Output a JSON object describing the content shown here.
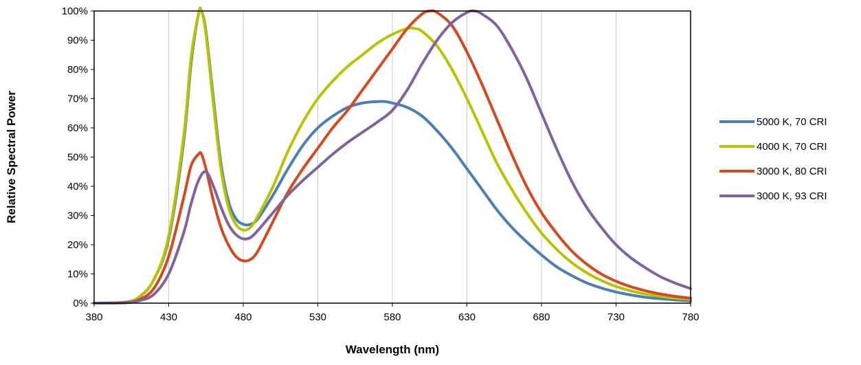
{
  "chart_data": {
    "type": "line",
    "title": "",
    "xlabel": "Wavelength (nm)",
    "ylabel": "Relative Spectral Power",
    "xlim": [
      380,
      780
    ],
    "ylim": [
      0,
      100
    ],
    "x_ticks": [
      380,
      430,
      480,
      530,
      580,
      630,
      680,
      730,
      780
    ],
    "x_tick_labels": [
      "380",
      "430",
      "480",
      "530",
      "580",
      "630",
      "680",
      "730",
      "780"
    ],
    "y_ticks": [
      0,
      10,
      20,
      30,
      40,
      50,
      60,
      70,
      80,
      90,
      100
    ],
    "y_tick_labels": [
      "0%",
      "10%",
      "20%",
      "30%",
      "40%",
      "50%",
      "60%",
      "70%",
      "80%",
      "90%",
      "100%"
    ],
    "grid": "vertical",
    "legend_position": "right",
    "series": [
      {
        "name": "5000 K, 70 CRI",
        "color": "#4a7ebb",
        "points": [
          [
            380,
            0
          ],
          [
            400,
            0.3
          ],
          [
            410,
            2
          ],
          [
            420,
            8
          ],
          [
            430,
            22
          ],
          [
            440,
            55
          ],
          [
            445,
            82
          ],
          [
            450,
            99
          ],
          [
            452,
            100
          ],
          [
            455,
            93
          ],
          [
            460,
            70
          ],
          [
            465,
            48
          ],
          [
            470,
            35
          ],
          [
            475,
            29
          ],
          [
            480,
            27
          ],
          [
            485,
            27
          ],
          [
            490,
            29
          ],
          [
            500,
            37
          ],
          [
            510,
            46
          ],
          [
            520,
            54
          ],
          [
            530,
            60
          ],
          [
            540,
            64
          ],
          [
            550,
            67
          ],
          [
            560,
            68.5
          ],
          [
            570,
            69
          ],
          [
            575,
            69
          ],
          [
            580,
            68.5
          ],
          [
            590,
            67
          ],
          [
            600,
            64
          ],
          [
            610,
            59
          ],
          [
            620,
            53
          ],
          [
            630,
            46
          ],
          [
            640,
            39
          ],
          [
            650,
            32
          ],
          [
            660,
            26
          ],
          [
            670,
            21
          ],
          [
            680,
            16.5
          ],
          [
            690,
            12.5
          ],
          [
            700,
            9.5
          ],
          [
            710,
            7
          ],
          [
            720,
            5.2
          ],
          [
            730,
            3.8
          ],
          [
            740,
            2.8
          ],
          [
            750,
            2
          ],
          [
            760,
            1.5
          ],
          [
            770,
            1.1
          ],
          [
            780,
            0.8
          ]
        ]
      },
      {
        "name": "4000 K, 70 CRI",
        "color": "#b9c400",
        "points": [
          [
            380,
            0
          ],
          [
            400,
            0.3
          ],
          [
            410,
            2
          ],
          [
            420,
            8
          ],
          [
            430,
            23
          ],
          [
            440,
            57
          ],
          [
            445,
            84
          ],
          [
            450,
            99
          ],
          [
            452,
            100
          ],
          [
            455,
            92
          ],
          [
            460,
            68
          ],
          [
            465,
            46
          ],
          [
            470,
            33
          ],
          [
            475,
            27
          ],
          [
            480,
            25
          ],
          [
            485,
            26
          ],
          [
            490,
            30
          ],
          [
            500,
            40
          ],
          [
            510,
            52
          ],
          [
            520,
            62
          ],
          [
            530,
            70
          ],
          [
            540,
            76
          ],
          [
            550,
            81
          ],
          [
            560,
            85
          ],
          [
            570,
            89
          ],
          [
            580,
            92
          ],
          [
            590,
            94
          ],
          [
            595,
            94
          ],
          [
            600,
            93
          ],
          [
            610,
            88
          ],
          [
            620,
            80
          ],
          [
            630,
            70
          ],
          [
            640,
            59
          ],
          [
            650,
            48
          ],
          [
            660,
            39
          ],
          [
            670,
            31
          ],
          [
            680,
            24
          ],
          [
            690,
            18.5
          ],
          [
            700,
            14
          ],
          [
            710,
            10.5
          ],
          [
            720,
            7.8
          ],
          [
            730,
            5.7
          ],
          [
            740,
            4.2
          ],
          [
            750,
            3.1
          ],
          [
            760,
            2.3
          ],
          [
            770,
            1.7
          ],
          [
            780,
            1.3
          ]
        ]
      },
      {
        "name": "3000 K, 80 CRI",
        "color": "#d44a1c",
        "points": [
          [
            380,
            0
          ],
          [
            400,
            0.2
          ],
          [
            410,
            1.2
          ],
          [
            420,
            5
          ],
          [
            430,
            16
          ],
          [
            440,
            36
          ],
          [
            445,
            47
          ],
          [
            450,
            51
          ],
          [
            452,
            51
          ],
          [
            455,
            46
          ],
          [
            460,
            35
          ],
          [
            465,
            26
          ],
          [
            470,
            20
          ],
          [
            475,
            16
          ],
          [
            480,
            14.5
          ],
          [
            485,
            15
          ],
          [
            490,
            18
          ],
          [
            500,
            28
          ],
          [
            510,
            38
          ],
          [
            520,
            46
          ],
          [
            530,
            53
          ],
          [
            540,
            60
          ],
          [
            550,
            66
          ],
          [
            560,
            73
          ],
          [
            570,
            80
          ],
          [
            580,
            87
          ],
          [
            590,
            94
          ],
          [
            600,
            99
          ],
          [
            605,
            100
          ],
          [
            610,
            99.5
          ],
          [
            620,
            95
          ],
          [
            630,
            86
          ],
          [
            640,
            75
          ],
          [
            650,
            63
          ],
          [
            660,
            51
          ],
          [
            670,
            40
          ],
          [
            680,
            31
          ],
          [
            690,
            24
          ],
          [
            700,
            18
          ],
          [
            710,
            13.5
          ],
          [
            720,
            10
          ],
          [
            730,
            7.5
          ],
          [
            740,
            5.6
          ],
          [
            750,
            4.2
          ],
          [
            760,
            3.1
          ],
          [
            770,
            2.3
          ],
          [
            780,
            1.7
          ]
        ]
      },
      {
        "name": "3000 K, 93 CRI",
        "color": "#8062a1",
        "points": [
          [
            380,
            0
          ],
          [
            400,
            0.1
          ],
          [
            410,
            0.8
          ],
          [
            420,
            3
          ],
          [
            430,
            10
          ],
          [
            440,
            24
          ],
          [
            445,
            34
          ],
          [
            450,
            42
          ],
          [
            455,
            45
          ],
          [
            460,
            40
          ],
          [
            465,
            33
          ],
          [
            470,
            27
          ],
          [
            475,
            23.5
          ],
          [
            480,
            22
          ],
          [
            485,
            22.5
          ],
          [
            490,
            25
          ],
          [
            500,
            31
          ],
          [
            510,
            37
          ],
          [
            520,
            42
          ],
          [
            530,
            46.5
          ],
          [
            540,
            51
          ],
          [
            550,
            55
          ],
          [
            560,
            58.5
          ],
          [
            570,
            62
          ],
          [
            580,
            66
          ],
          [
            590,
            73
          ],
          [
            600,
            82
          ],
          [
            610,
            90
          ],
          [
            620,
            96
          ],
          [
            630,
            99.5
          ],
          [
            635,
            100
          ],
          [
            640,
            99
          ],
          [
            650,
            95
          ],
          [
            660,
            87
          ],
          [
            670,
            77
          ],
          [
            680,
            65
          ],
          [
            690,
            53
          ],
          [
            700,
            42
          ],
          [
            710,
            33
          ],
          [
            720,
            26
          ],
          [
            730,
            20
          ],
          [
            740,
            15.5
          ],
          [
            750,
            12
          ],
          [
            760,
            9
          ],
          [
            770,
            6.8
          ],
          [
            780,
            5
          ]
        ]
      }
    ]
  }
}
